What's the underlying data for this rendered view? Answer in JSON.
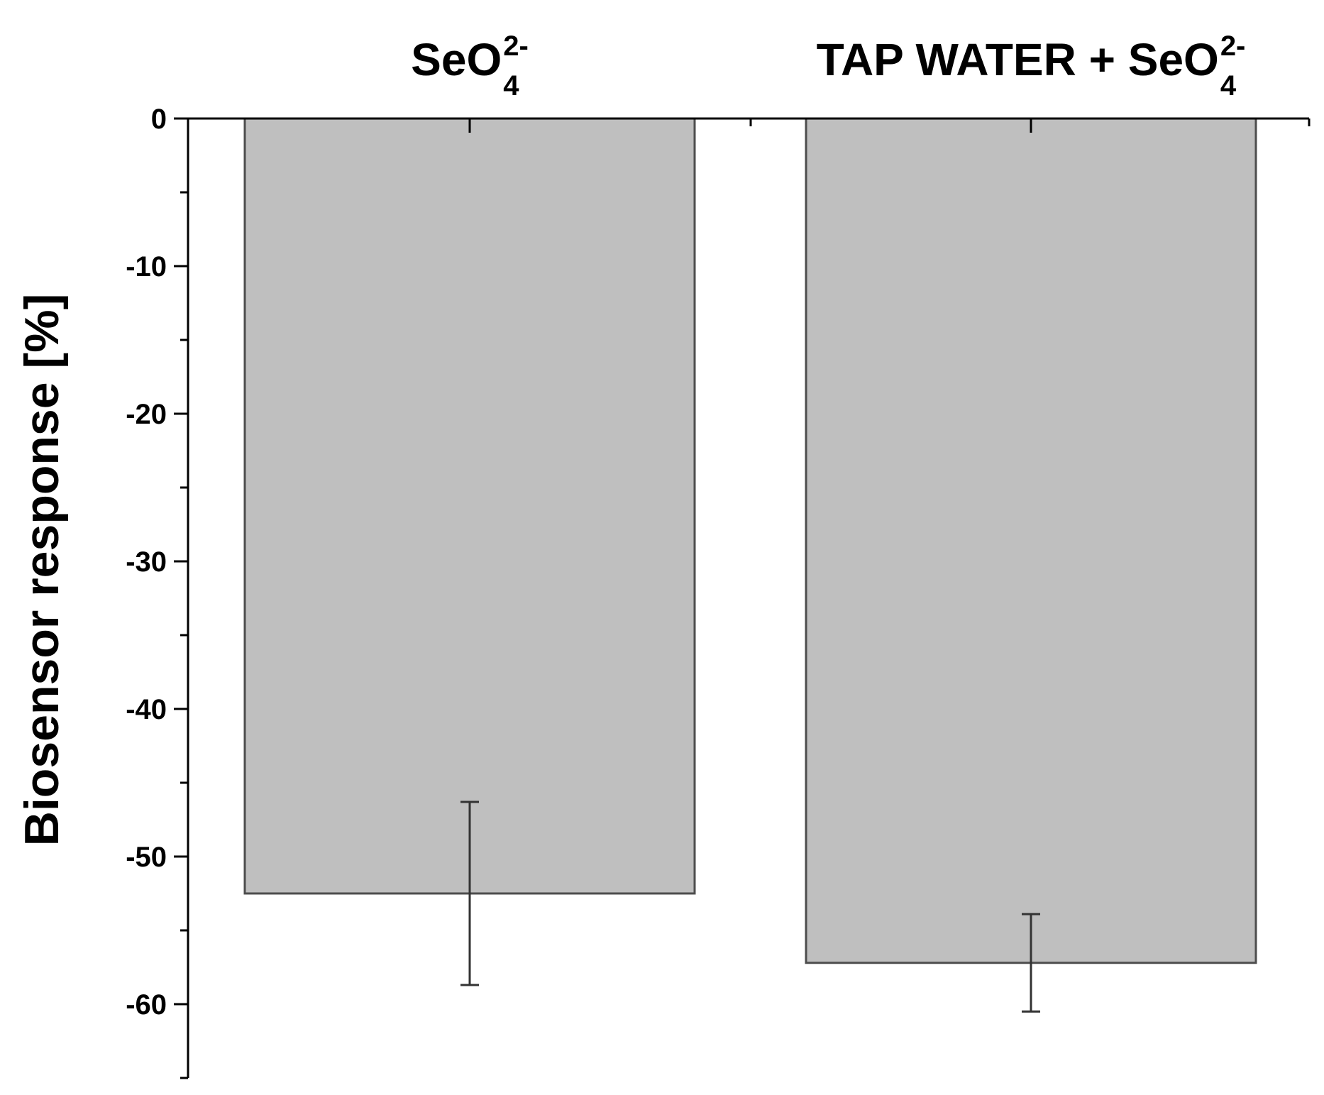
{
  "chart_data": {
    "type": "bar",
    "categories": [
      {
        "base": "SeO",
        "subscript": "4",
        "superscript": "2-"
      },
      {
        "base": "TAP WATER + SeO",
        "subscript": "4",
        "superscript": "2-"
      }
    ],
    "series": [
      {
        "values": [
          -52.5,
          -57.2
        ],
        "error": [
          {
            "low": -58.7,
            "high": -46.3
          },
          {
            "low": -60.5,
            "high": -53.9
          }
        ]
      }
    ],
    "ylabel": "Biosensor response [%]",
    "xlabel": "",
    "ylim": [
      -65,
      0
    ],
    "yticks": [
      0,
      -10,
      -20,
      -30,
      -40,
      -50,
      -60
    ],
    "ytick_labels": [
      "0",
      "-10",
      "-20",
      "-30",
      "-40",
      "-50",
      "-60"
    ],
    "category_axis_position": "top",
    "grid": false,
    "legend": "none",
    "colors": {
      "bar_fill": "#bfbfbf",
      "bar_stroke": "#4d4d4d",
      "axis": "#000000",
      "error_bar": "#333333"
    }
  }
}
